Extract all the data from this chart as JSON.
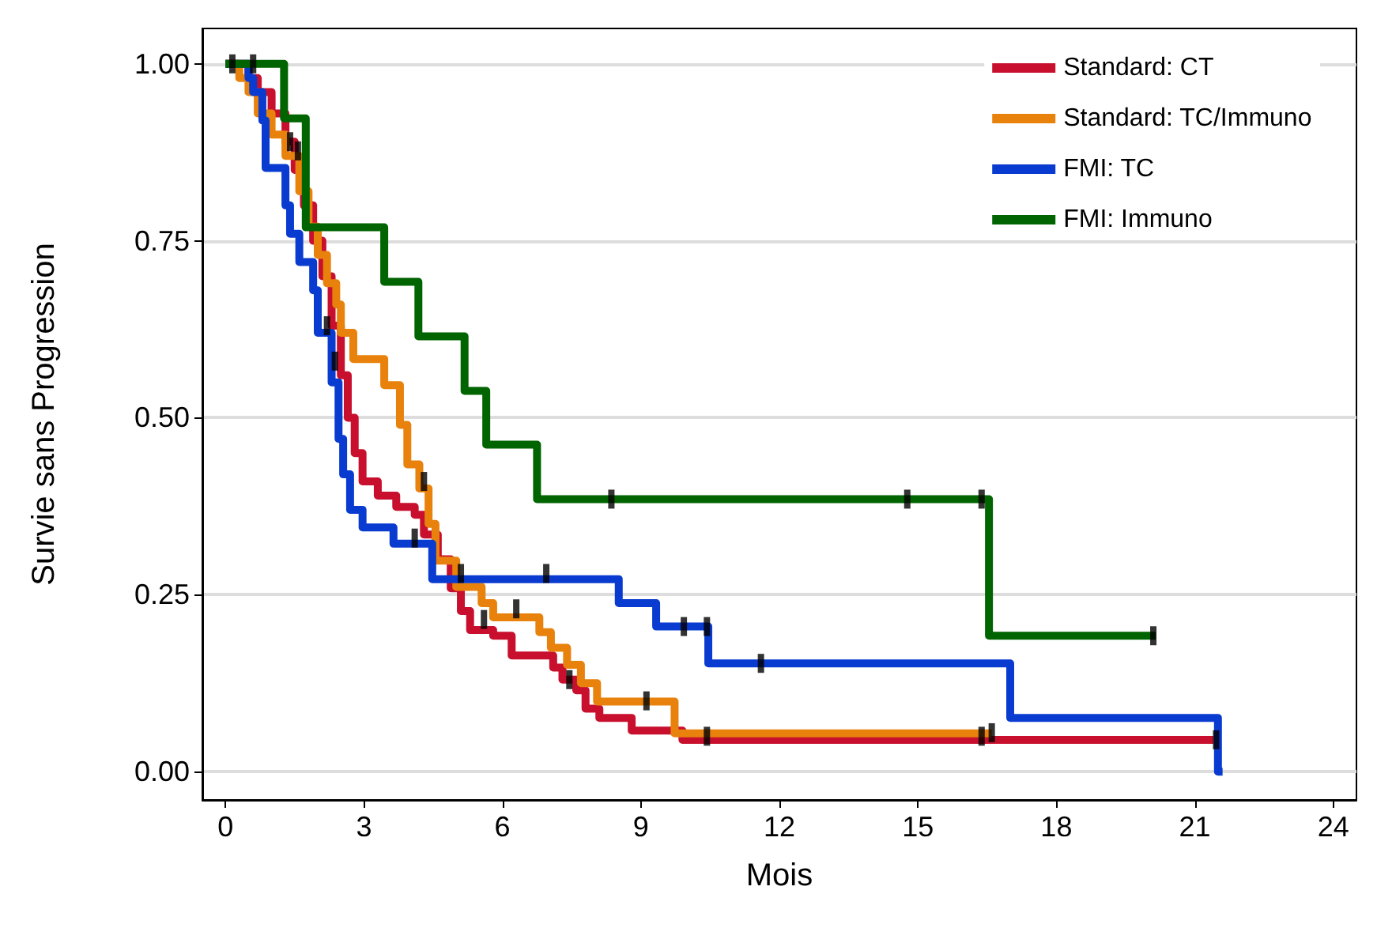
{
  "chart_data": {
    "type": "step",
    "xlabel": "Mois",
    "ylabel": "Survie sans Progression",
    "xlim": [
      -0.5,
      24.5
    ],
    "xticks": [
      0,
      3,
      6,
      9,
      12,
      15,
      18,
      21,
      24
    ],
    "ylim": [
      -0.04,
      1.05
    ],
    "yticks": [
      {
        "value": 0,
        "label": "0.00"
      },
      {
        "value": 0.25,
        "label": "0.25"
      },
      {
        "value": 0.5,
        "label": "0.50"
      },
      {
        "value": 0.75,
        "label": "0.75"
      },
      {
        "value": 1,
        "label": "1.00"
      }
    ],
    "grid": "y",
    "legend": "top right",
    "marker": "none",
    "line_style": "solid",
    "series": [
      {
        "name": "Standard: CT",
        "color": "#c8102e",
        "x": [
          0,
          0.5,
          0.7,
          1.0,
          1.3,
          1.5,
          1.7,
          1.9,
          2.1,
          2.3,
          2.5,
          2.65,
          2.8,
          2.97,
          3.3,
          3.7,
          4.1,
          4.3,
          4.6,
          4.88,
          5.1,
          5.3,
          5.8,
          6.2,
          7.1,
          7.3,
          7.6,
          7.8,
          8.1,
          8.8,
          9.9,
          21.4
        ],
        "values": [
          1,
          0.98,
          0.96,
          0.93,
          0.89,
          0.85,
          0.8,
          0.75,
          0.7,
          0.63,
          0.56,
          0.5,
          0.45,
          0.41,
          0.39,
          0.374,
          0.363,
          0.335,
          0.3,
          0.259,
          0.227,
          0.2,
          0.192,
          0.164,
          0.147,
          0.13,
          0.115,
          0.089,
          0.076,
          0.058,
          0.045,
          0.045
        ]
      },
      {
        "name": "Standard: TC/Immuno",
        "color": "#e8820c",
        "x": [
          0,
          0.3,
          0.5,
          0.7,
          1.0,
          1.3,
          1.6,
          1.8,
          2.0,
          2.2,
          2.4,
          2.5,
          2.77,
          3.44,
          3.78,
          3.94,
          4.2,
          4.4,
          4.55,
          5.0,
          5.55,
          5.8,
          6.8,
          7.05,
          7.4,
          7.7,
          8.05,
          9.73,
          16.6
        ],
        "values": [
          1,
          0.98,
          0.96,
          0.93,
          0.9,
          0.87,
          0.82,
          0.77,
          0.73,
          0.69,
          0.66,
          0.62,
          0.583,
          0.546,
          0.49,
          0.434,
          0.4,
          0.35,
          0.298,
          0.261,
          0.238,
          0.218,
          0.197,
          0.175,
          0.151,
          0.125,
          0.099,
          0.054,
          0.054
        ]
      },
      {
        "name": "FMI: TC",
        "color": "#0a3bd0",
        "x": [
          0,
          0.5,
          0.6,
          0.8,
          0.87,
          1.3,
          1.4,
          1.6,
          1.9,
          2.0,
          2.3,
          2.45,
          2.55,
          2.7,
          2.97,
          3.64,
          4.48,
          8.52,
          9.33,
          10.46,
          17.0,
          21.5,
          21.6
        ],
        "values": [
          1,
          0.98,
          0.96,
          0.92,
          0.853,
          0.8,
          0.76,
          0.72,
          0.68,
          0.62,
          0.55,
          0.47,
          0.42,
          0.37,
          0.345,
          0.322,
          0.272,
          0.238,
          0.205,
          0.153,
          0.076,
          0,
          0
        ]
      },
      {
        "name": "FMI: Immuno",
        "color": "#006400",
        "x": [
          0,
          1.27,
          1.74,
          3.44,
          4.18,
          5.18,
          5.65,
          6.75,
          16.54,
          20.15
        ],
        "values": [
          1,
          0.923,
          0.769,
          0.692,
          0.615,
          0.538,
          0.462,
          0.385,
          0.192,
          0.192
        ]
      },
      {
        "type": "scatter",
        "marker": "square",
        "color": "#000000",
        "x": [
          0.15,
          0.6,
          1.4,
          1.57,
          2.2,
          2.37,
          4.1,
          4.3,
          5.1,
          6.95,
          5.6,
          6.3,
          8.36,
          14.77,
          16.38,
          20.1,
          9.93,
          10.43,
          11.6,
          9.12,
          10.43,
          16.38,
          16.6,
          21.46,
          7.45
        ],
        "values": [
          1,
          1,
          0.89,
          0.877,
          0.63,
          0.58,
          0.33,
          0.41,
          0.28,
          0.28,
          0.215,
          0.23,
          0.385,
          0.385,
          0.385,
          0.192,
          0.205,
          0.205,
          0.153,
          0.1,
          0.05,
          0.05,
          0.055,
          0.045,
          0.13
        ]
      }
    ]
  }
}
